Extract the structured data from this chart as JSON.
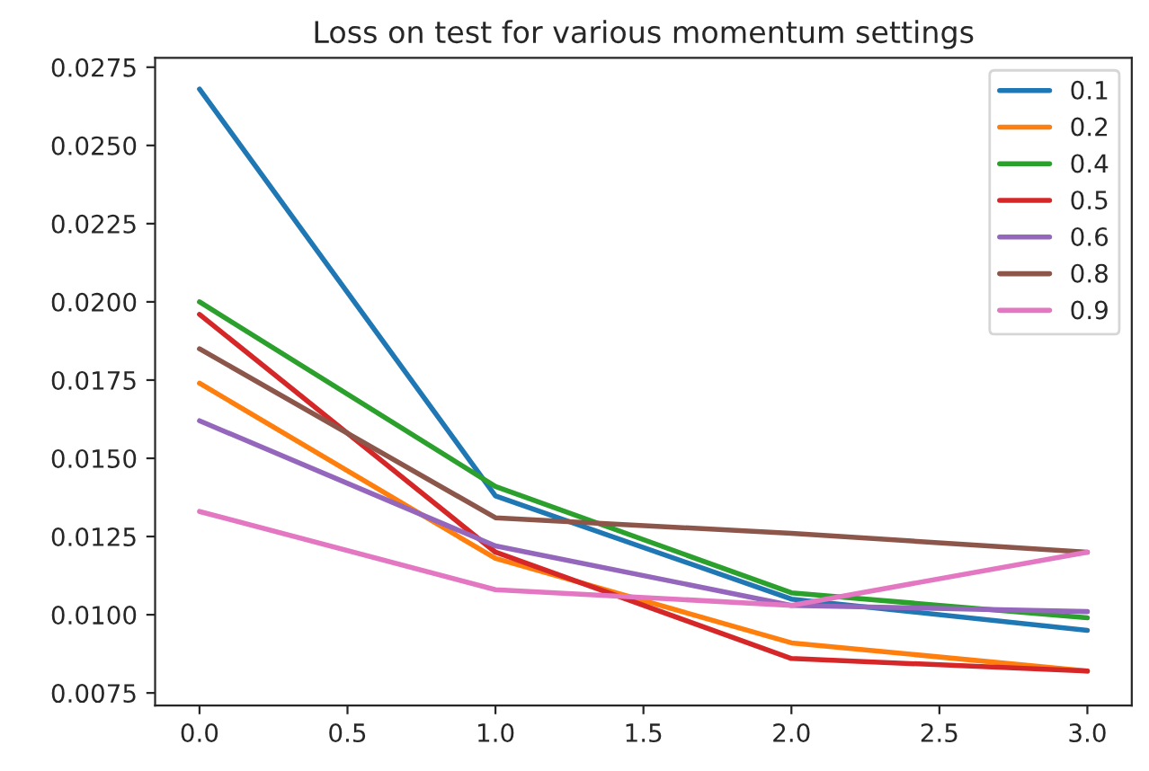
{
  "chart_data": {
    "type": "line",
    "title": "Loss on test for various momentum settings",
    "x": [
      0,
      1,
      2,
      3
    ],
    "series": [
      {
        "name": "0.1",
        "color": "#1f77b4",
        "values": [
          0.0268,
          0.0138,
          0.0105,
          0.0095
        ]
      },
      {
        "name": "0.2",
        "color": "#ff7f0e",
        "values": [
          0.0174,
          0.0118,
          0.0091,
          0.0082
        ]
      },
      {
        "name": "0.4",
        "color": "#2ca02c",
        "values": [
          0.02,
          0.0141,
          0.0107,
          0.0099
        ]
      },
      {
        "name": "0.5",
        "color": "#d62728",
        "values": [
          0.0196,
          0.012,
          0.0086,
          0.0082
        ]
      },
      {
        "name": "0.6",
        "color": "#9467bd",
        "values": [
          0.0162,
          0.0122,
          0.0103,
          0.0101
        ]
      },
      {
        "name": "0.8",
        "color": "#8c564b",
        "values": [
          0.0185,
          0.0131,
          0.0126,
          0.012
        ]
      },
      {
        "name": "0.9",
        "color": "#e377c2",
        "values": [
          0.0133,
          0.0108,
          0.0103,
          0.012
        ]
      }
    ],
    "xlim": [
      -0.15,
      3.15
    ],
    "xticks": [
      {
        "value": 0,
        "label": "0.0"
      },
      {
        "value": 0.5,
        "label": "0.5"
      },
      {
        "value": 1,
        "label": "1.0"
      },
      {
        "value": 1.5,
        "label": "1.5"
      },
      {
        "value": 2,
        "label": "2.0"
      },
      {
        "value": 2.5,
        "label": "2.5"
      },
      {
        "value": 3,
        "label": "3.0"
      }
    ],
    "ylim": [
      0.0071,
      0.0278
    ],
    "yticks": [
      {
        "value": 0.0075,
        "label": "0.0075"
      },
      {
        "value": 0.01,
        "label": "0.0100"
      },
      {
        "value": 0.0125,
        "label": "0.0125"
      },
      {
        "value": 0.015,
        "label": "0.0150"
      },
      {
        "value": 0.0175,
        "label": "0.0175"
      },
      {
        "value": 0.02,
        "label": "0.0200"
      },
      {
        "value": 0.0225,
        "label": "0.0225"
      },
      {
        "value": 0.025,
        "label": "0.0250"
      },
      {
        "value": 0.0275,
        "label": "0.0275"
      }
    ],
    "grid": false,
    "legend": "top right",
    "marker": "none",
    "line_style": "solid"
  }
}
